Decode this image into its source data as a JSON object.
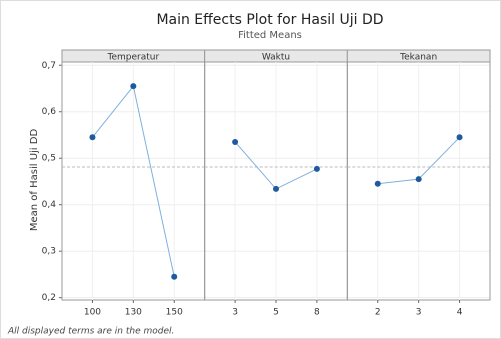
{
  "chart_data": {
    "type": "line",
    "title": "Main Effects Plot for Hasil Uji DD",
    "subtitle": "Fitted Means",
    "ylabel": "Mean of Hasil Uji DD",
    "footnote": "All displayed terms are in the model.",
    "panels": [
      {
        "name": "Temperatur",
        "categories": [
          "100",
          "130",
          "150"
        ],
        "values": [
          0.545,
          0.655,
          0.245
        ]
      },
      {
        "name": "Waktu",
        "categories": [
          "3",
          "5",
          "8"
        ],
        "values": [
          0.535,
          0.434,
          0.477
        ]
      },
      {
        "name": "Tekanan",
        "categories": [
          "2",
          "3",
          "4"
        ],
        "values": [
          0.445,
          0.455,
          0.545
        ]
      }
    ],
    "reference_line": 0.481,
    "ylim": [
      0.195,
      0.707
    ],
    "yticks": [
      {
        "value": 0.2,
        "label": "0,2"
      },
      {
        "value": 0.3,
        "label": "0,3"
      },
      {
        "value": 0.4,
        "label": "0,4"
      },
      {
        "value": 0.5,
        "label": "0,5"
      },
      {
        "value": 0.6,
        "label": "0,6"
      },
      {
        "value": 0.7,
        "label": "0,7"
      }
    ],
    "grid": true,
    "color": "#1f5a9e",
    "line_color": "#7fb0de"
  }
}
